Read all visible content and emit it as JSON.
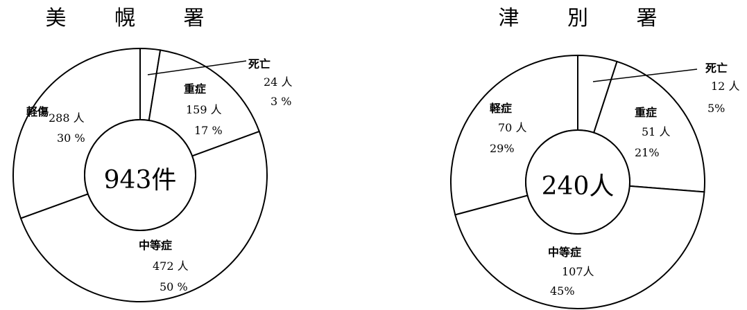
{
  "chart_data": [
    {
      "type": "pie",
      "title": "美 幌 署",
      "center_label": "943件",
      "colors": {
        "fill": "#ffffff",
        "stroke": "#000000"
      },
      "slices": [
        {
          "name": "死亡",
          "value": 24,
          "value_text": "24 人",
          "percent_text": "3 %"
        },
        {
          "name": "重症",
          "value": 159,
          "value_text": "159 人",
          "percent_text": "17 %"
        },
        {
          "name": "中等症",
          "value": 472,
          "value_text": "472 人",
          "percent_text": "50 %"
        },
        {
          "name": "軽傷",
          "value": 288,
          "value_text": "288 人",
          "percent_text": "30 %"
        }
      ]
    },
    {
      "type": "pie",
      "title": "津 別 署",
      "center_label": "240人",
      "colors": {
        "fill": "#ffffff",
        "stroke": "#000000"
      },
      "slices": [
        {
          "name": "死亡",
          "value": 12,
          "value_text": "12 人",
          "percent_text": "5%"
        },
        {
          "name": "重症",
          "value": 51,
          "value_text": "51 人",
          "percent_text": "21%"
        },
        {
          "name": "中等症",
          "value": 107,
          "value_text": "107人",
          "percent_text": "45%"
        },
        {
          "name": "軽症",
          "value": 70,
          "value_text": "70 人",
          "percent_text": "29%"
        }
      ]
    }
  ]
}
